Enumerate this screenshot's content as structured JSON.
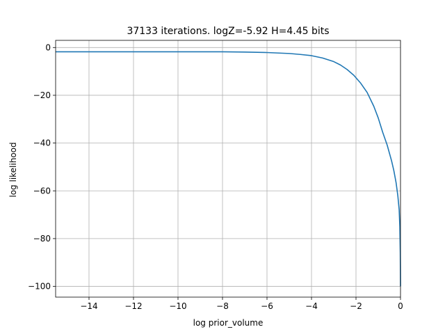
{
  "chart_data": {
    "type": "line",
    "title": "37133 iterations. logZ=-5.92 H=4.45 bits",
    "xlabel": "log prior_volume",
    "ylabel": "log likelihood",
    "xlim": [
      -15.5,
      0
    ],
    "ylim": [
      -104.5,
      3
    ],
    "grid": true,
    "x_ticks": [
      -14,
      -12,
      -10,
      -8,
      -6,
      -4,
      -2,
      0
    ],
    "x_tick_labels": [
      "−14",
      "−12",
      "−10",
      "−8",
      "−6",
      "−4",
      "−2",
      "0"
    ],
    "y_ticks": [
      0,
      -20,
      -40,
      -60,
      -80,
      -100
    ],
    "y_tick_labels": [
      "0",
      "−20",
      "−40",
      "−60",
      "−80",
      "−100"
    ],
    "series": [
      {
        "color": "#1f77b4",
        "x": [
          -15.5,
          -14,
          -12,
          -10,
          -8,
          -7,
          -6,
          -5,
          -4.5,
          -4,
          -3.5,
          -3,
          -2.7,
          -2.4,
          -2.1,
          -1.8,
          -1.5,
          -1.2,
          -1.0,
          -0.8,
          -0.6,
          -0.4,
          -0.3,
          -0.2,
          -0.12,
          -0.06,
          -0.03,
          -0.01,
          0
        ],
        "y": [
          -1.8,
          -1.8,
          -1.8,
          -1.8,
          -1.8,
          -1.9,
          -2.1,
          -2.5,
          -2.9,
          -3.4,
          -4.4,
          -5.9,
          -7.3,
          -9.2,
          -11.6,
          -14.8,
          -18.8,
          -24.6,
          -29.5,
          -35.5,
          -40.8,
          -47.5,
          -51.5,
          -56.5,
          -62,
          -68,
          -75,
          -86,
          -100
        ]
      }
    ]
  }
}
